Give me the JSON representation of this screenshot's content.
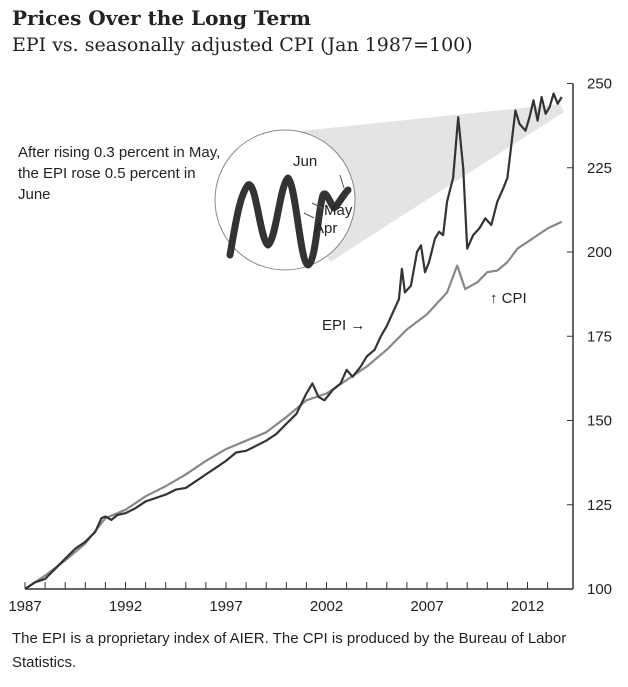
{
  "chart_data": {
    "type": "line",
    "title": "Prices Over the Long Term",
    "subtitle": "EPI vs. seasonally adjusted CPI (Jan 1987=100)",
    "xlim": [
      1987,
      2013.8
    ],
    "ylim": [
      100,
      250
    ],
    "x_ticks": [
      "1987",
      "1992",
      "1997",
      "2002",
      "2007",
      "2012"
    ],
    "y_ticks": [
      "100",
      "125",
      "150",
      "175",
      "200",
      "225",
      "250"
    ],
    "y_axis_side": "right",
    "grid": false,
    "series": [
      {
        "name": "EPI",
        "label": "EPI →",
        "color": "#333333",
        "x": [
          1987.0,
          1987.5,
          1988.0,
          1988.5,
          1989.0,
          1989.5,
          1990.0,
          1990.5,
          1990.8,
          1991.0,
          1991.3,
          1991.6,
          1992.0,
          1992.5,
          1993.0,
          1993.5,
          1994.0,
          1994.5,
          1995.0,
          1995.5,
          1996.0,
          1996.5,
          1997.0,
          1997.5,
          1998.0,
          1998.5,
          1999.0,
          1999.5,
          2000.0,
          2000.5,
          2001.0,
          2001.3,
          2001.6,
          2001.9,
          2002.3,
          2002.7,
          2003.0,
          2003.3,
          2003.7,
          2004.0,
          2004.4,
          2004.7,
          2005.0,
          2005.3,
          2005.6,
          2005.75,
          2005.9,
          2006.2,
          2006.5,
          2006.7,
          2006.9,
          2007.1,
          2007.4,
          2007.6,
          2007.8,
          2008.0,
          2008.3,
          2008.55,
          2008.8,
          2009.0,
          2009.3,
          2009.6,
          2009.9,
          2010.2,
          2010.5,
          2010.8,
          2011.0,
          2011.2,
          2011.4,
          2011.6,
          2011.9,
          2012.1,
          2012.3,
          2012.5,
          2012.7,
          2012.9,
          2013.1,
          2013.3,
          2013.5,
          2013.7
        ],
        "y": [
          100,
          102,
          103,
          106,
          109,
          112,
          114,
          117,
          121,
          121.5,
          120.5,
          122,
          122.5,
          124,
          126,
          127,
          128,
          129.5,
          130,
          132,
          134,
          136,
          138,
          140.5,
          141,
          142.5,
          144,
          146,
          149,
          152,
          158,
          161,
          157,
          156,
          159,
          161,
          165,
          163,
          166,
          169,
          171,
          175,
          178,
          182,
          186,
          195,
          188,
          190,
          200,
          202,
          194,
          197,
          204,
          206,
          205,
          215,
          222,
          240,
          225,
          201,
          205,
          207,
          210,
          208,
          215,
          219,
          222,
          232,
          242,
          238,
          236,
          240,
          245,
          239,
          246,
          241,
          243,
          247,
          244,
          246
        ]
      },
      {
        "name": "CPI",
        "label": "↑ CPI",
        "color": "#888888",
        "x": [
          1987,
          1988,
          1989,
          1990,
          1991,
          1992,
          1993,
          1994,
          1995,
          1996,
          1997,
          1998,
          1999,
          2000,
          2001,
          2002,
          2003,
          2004,
          2005,
          2006,
          2007,
          2008.0,
          2008.5,
          2008.9,
          2009.5,
          2010.0,
          2010.5,
          2011.0,
          2011.5,
          2012.0,
          2012.5,
          2013.0,
          2013.7
        ],
        "y": [
          100,
          104,
          108.5,
          113.5,
          121,
          123.5,
          127.5,
          130.5,
          134,
          138,
          141.5,
          144,
          146.5,
          151,
          156,
          158,
          162,
          166,
          171,
          177,
          181.5,
          188,
          196,
          189,
          191,
          194,
          194.5,
          197,
          201,
          203,
          205,
          207,
          209
        ]
      }
    ],
    "inset": {
      "labels": [
        "Jun",
        "May",
        "Apr"
      ]
    },
    "annotation": "After rising 0.3 percent in May, the EPI rose 0.5 percent in June",
    "footnote": "The EPI is a proprietary index of AIER. The CPI is produced by the Bureau of Labor Statistics."
  }
}
